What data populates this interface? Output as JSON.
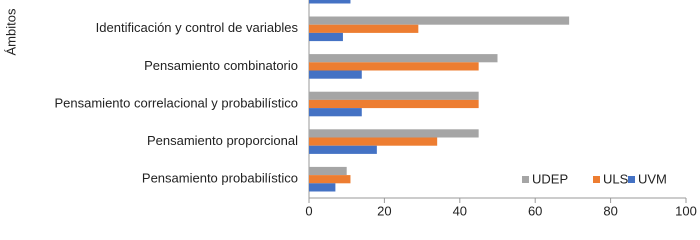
{
  "chart_data": {
    "type": "barh",
    "y_label": "Ámbitos",
    "categories": [
      null,
      "Identificación y control de variables",
      "Pensamiento combinatorio",
      "Pensamiento correlacional y probabilístico",
      "Pensamiento proporcional",
      "Pensamiento probabilístico"
    ],
    "series": [
      {
        "name": "UDEP",
        "color": "#a5a5a5",
        "values": [
          null,
          69,
          50,
          45,
          45,
          10
        ]
      },
      {
        "name": "ULS",
        "color": "#ed7d31",
        "values": [
          null,
          29,
          45,
          45,
          34,
          11
        ]
      },
      {
        "name": "UVM",
        "color": "#4472c4",
        "values": [
          11,
          9,
          14,
          14,
          18,
          7
        ]
      }
    ],
    "xlim": [
      0,
      100
    ],
    "xticks": [
      0,
      20,
      40,
      60,
      80,
      100
    ],
    "legend": "lower right"
  }
}
